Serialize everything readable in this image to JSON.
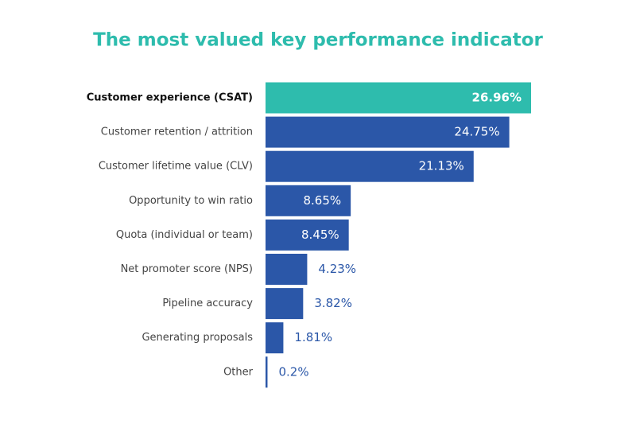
{
  "chart_data": {
    "type": "bar",
    "orientation": "horizontal",
    "title": "The most valued key performance indicator",
    "categories": [
      "Customer experience (CSAT)",
      "Customer retention / attrition",
      "Customer lifetime value (CLV)",
      "Opportunity to win ratio",
      "Quota (individual or team)",
      "Net promoter score (NPS)",
      "Pipeline accuracy",
      "Generating proposals",
      "Other"
    ],
    "values": [
      26.96,
      24.75,
      21.13,
      8.65,
      8.45,
      4.23,
      3.82,
      1.81,
      0.2
    ],
    "value_labels": [
      "26.96%",
      "24.75%",
      "21.13%",
      "8.65%",
      "8.45%",
      "4.23%",
      "3.82%",
      "1.81%",
      "0.2%"
    ],
    "color": "#2b57a8",
    "colors": [
      "#2ebcad",
      "#2b57a8",
      "#2b57a8",
      "#2b57a8",
      "#2b57a8",
      "#2b57a8",
      "#2b57a8",
      "#2b57a8",
      "#2b57a8"
    ]
  }
}
